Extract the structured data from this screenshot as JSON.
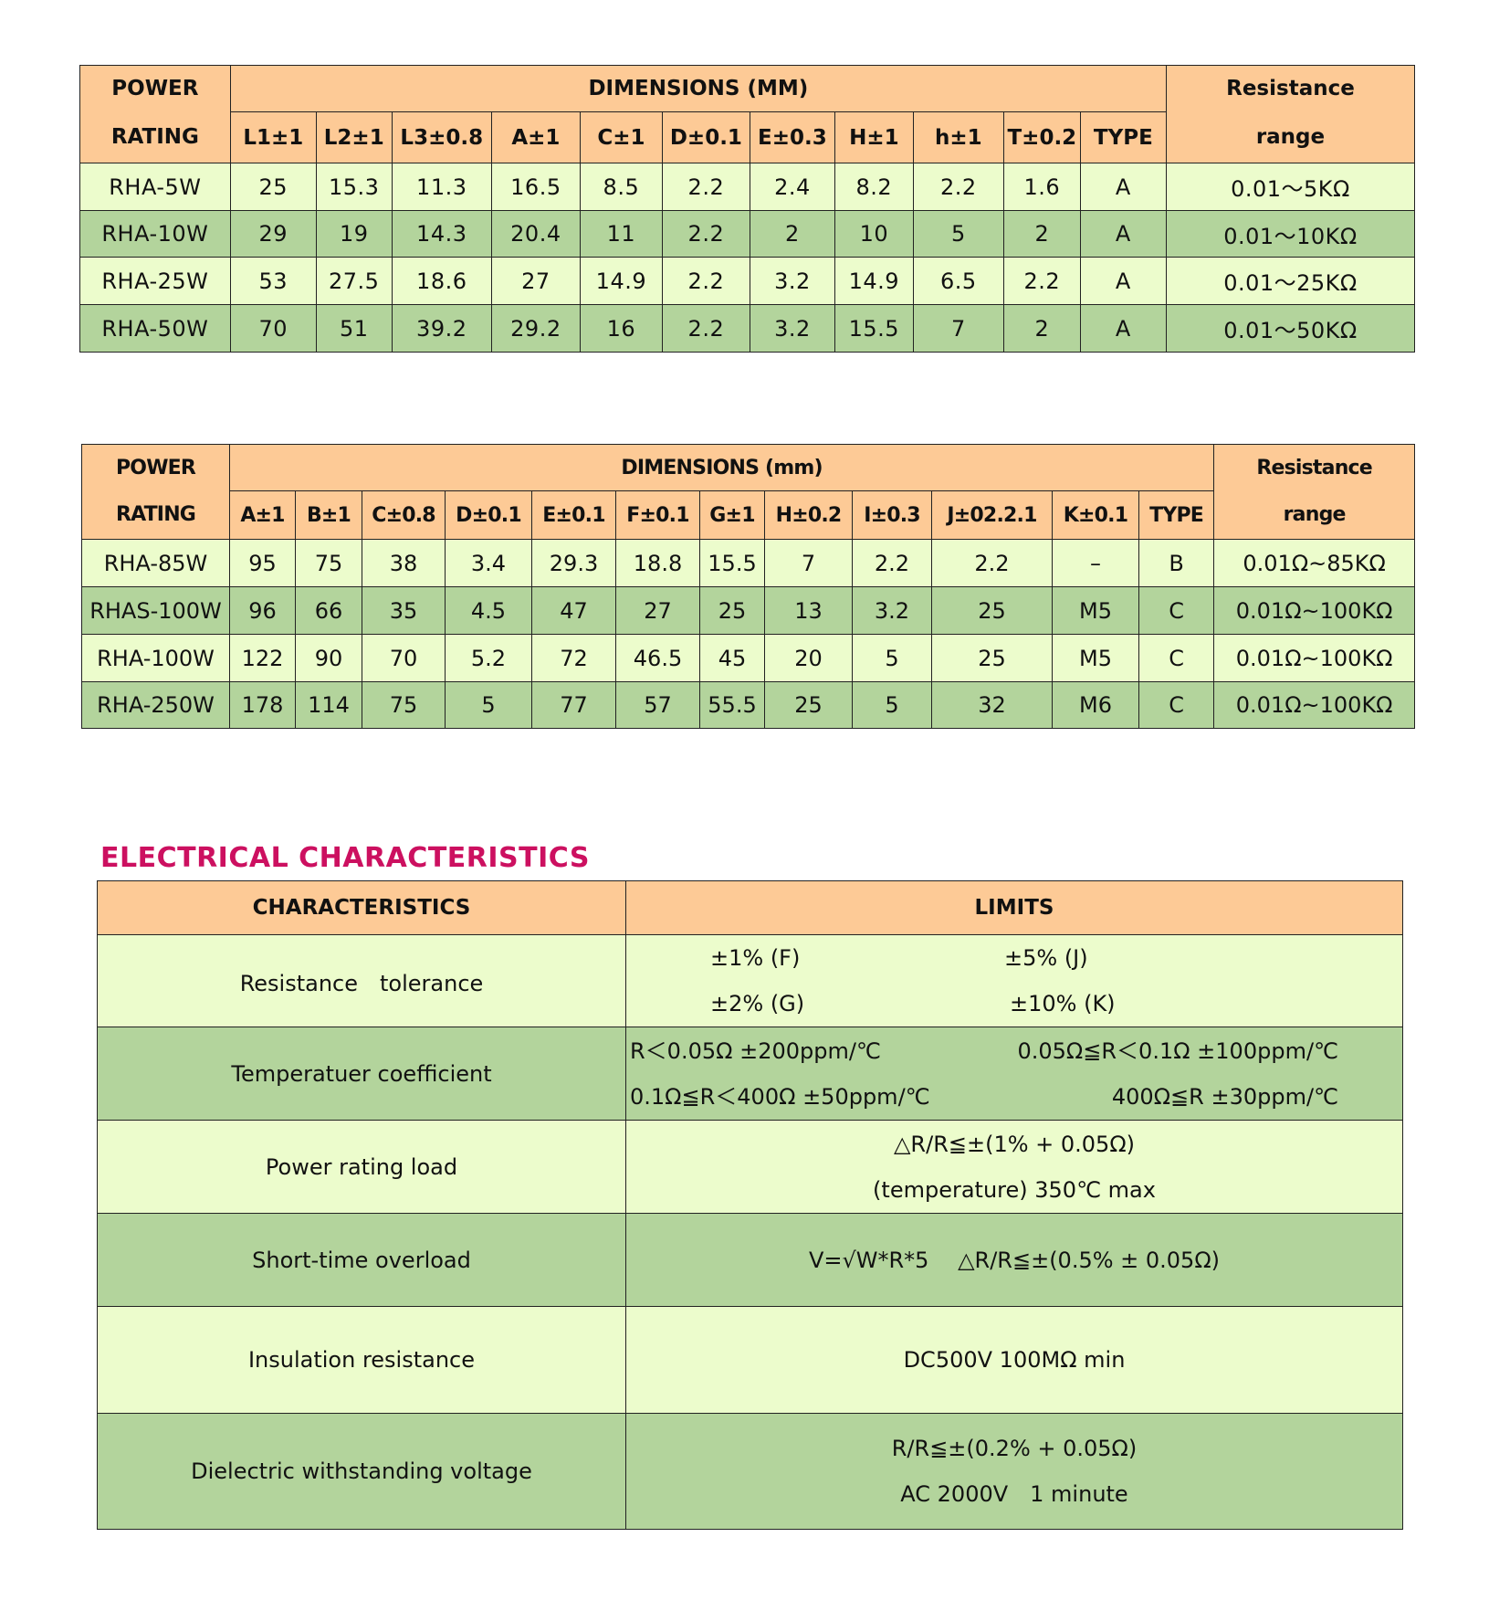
{
  "colors": {
    "header": "#fdca96",
    "row_light": "#ecfccc",
    "row_dark": "#b3d49c",
    "title": "#cc1060"
  },
  "table1": {
    "power_rating_l1": "POWER",
    "power_rating_l2": "RATING",
    "dimensions": "DIMENSIONS (MM)",
    "resistance_l1": "Resistance",
    "resistance_l2": "range",
    "columns": [
      "L1±1",
      "L2±1",
      "L3±0.8",
      "A±1",
      "C±1",
      "D±0.1",
      "E±0.3",
      "H±1",
      "h±1",
      "T±0.2",
      "TYPE"
    ],
    "rows": [
      [
        "RHA-5W",
        "25",
        "15.3",
        "11.3",
        "16.5",
        "8.5",
        "2.2",
        "2.4",
        "8.2",
        "2.2",
        "1.6",
        "A",
        "0.01～5KΩ"
      ],
      [
        "RHA-10W",
        "29",
        "19",
        "14.3",
        "20.4",
        "11",
        "2.2",
        "2",
        "10",
        "5",
        "2",
        "A",
        "0.01～10KΩ"
      ],
      [
        "RHA-25W",
        "53",
        "27.5",
        "18.6",
        "27",
        "14.9",
        "2.2",
        "3.2",
        "14.9",
        "6.5",
        "2.2",
        "A",
        "0.01～25KΩ"
      ],
      [
        "RHA-50W",
        "70",
        "51",
        "39.2",
        "29.2",
        "16",
        "2.2",
        "3.2",
        "15.5",
        "7",
        "2",
        "A",
        "0.01～50KΩ"
      ]
    ]
  },
  "table2": {
    "power_rating_l1": "POWER",
    "power_rating_l2": "RATING",
    "dimensions": "DIMENSIONS (mm)",
    "resistance_l1": "Resistance",
    "resistance_l2": "range",
    "columns": [
      "A±1",
      "B±1",
      "C±0.8",
      "D±0.1",
      "E±0.1",
      "F±0.1",
      "G±1",
      "H±0.2",
      "I±0.3",
      "J±02.2.1",
      "K±0.1",
      "TYPE"
    ],
    "rows": [
      [
        "RHA-85W",
        "95",
        "75",
        "38",
        "3.4",
        "29.3",
        "18.8",
        "15.5",
        "7",
        "2.2",
        "2.2",
        "–",
        "B",
        "0.01Ω~85KΩ"
      ],
      [
        "RHAS-100W",
        "96",
        "66",
        "35",
        "4.5",
        "47",
        "27",
        "25",
        "13",
        "3.2",
        "25",
        "M5",
        "C",
        "0.01Ω~100KΩ"
      ],
      [
        "RHA-100W",
        "122",
        "90",
        "70",
        "5.2",
        "72",
        "46.5",
        "45",
        "20",
        "5",
        "25",
        "M5",
        "C",
        "0.01Ω~100KΩ"
      ],
      [
        "RHA-250W",
        "178",
        "114",
        "75",
        "5",
        "77",
        "57",
        "55.5",
        "25",
        "5",
        "32",
        "M6",
        "C",
        "0.01Ω~100KΩ"
      ]
    ]
  },
  "electrical": {
    "title": "ELECTRICAL CHARACTERISTICS",
    "col_characteristics": "CHARACTERISTICS",
    "col_limits": "LIMITS",
    "rows": [
      {
        "name": "Resistance　tolerance",
        "lines": [
          [
            "±1% (F)",
            "±5% (J)"
          ],
          [
            "±2% (G)",
            "±10% (K)"
          ]
        ]
      },
      {
        "name": "Temperatuer coefficient",
        "lines": [
          [
            "R＜0.05Ω ±200ppm/℃",
            "0.05Ω≦R＜0.1Ω ±100ppm/℃"
          ],
          [
            "0.1Ω≦R＜400Ω ±50ppm/℃",
            "400Ω≦R ±30ppm/℃"
          ]
        ]
      },
      {
        "name": "Power rating load",
        "lines": [
          [
            "△R/R≦±(1% + 0.05Ω)"
          ],
          [
            "(temperature) 350℃ max"
          ]
        ]
      },
      {
        "name": "Short-time overload",
        "lines": [
          [
            "V=√W*R*5　 △R/R≦±(0.5% ± 0.05Ω)"
          ]
        ]
      },
      {
        "name": "Insulation resistance",
        "lines": [
          [
            "DC500V 100MΩ min"
          ]
        ]
      },
      {
        "name": "Dielectric withstanding voltage",
        "lines": [
          [
            "R/R≦±(0.2% + 0.05Ω)"
          ],
          [
            "AC 2000V　1 minute"
          ]
        ]
      }
    ]
  }
}
